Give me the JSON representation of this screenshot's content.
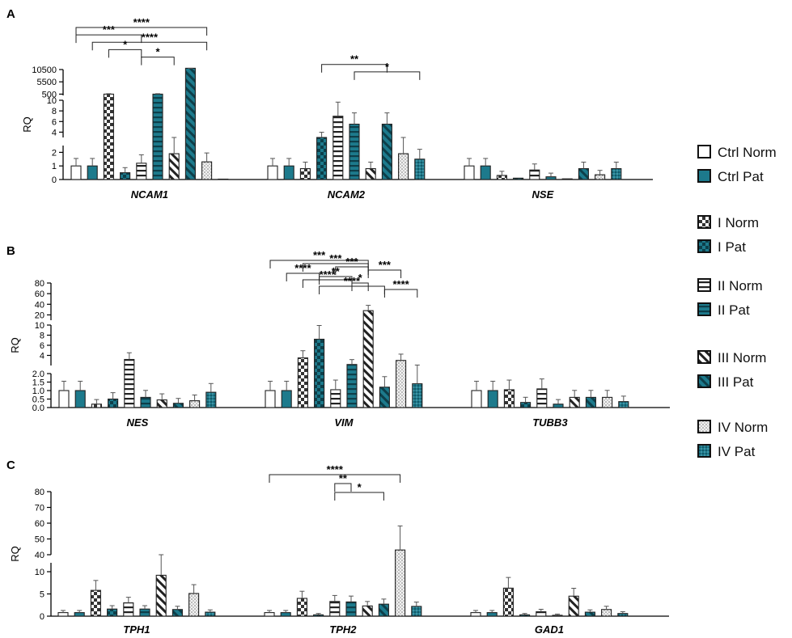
{
  "groups": [
    {
      "key": "ctrl_norm",
      "label": "Ctrl Norm",
      "pattern": "solid",
      "fill": "#ffffff"
    },
    {
      "key": "ctrl_pat",
      "label": "Ctrl Pat",
      "pattern": "solid",
      "fill": "#1d7a8c"
    },
    {
      "key": "i_norm",
      "label": "I Norm",
      "pattern": "check",
      "fill": "#ffffff"
    },
    {
      "key": "i_pat",
      "label": "I Pat",
      "pattern": "check",
      "fill": "#1d7a8c"
    },
    {
      "key": "ii_norm",
      "label": "II Norm",
      "pattern": "hstripe",
      "fill": "#ffffff"
    },
    {
      "key": "ii_pat",
      "label": "II Pat",
      "pattern": "hstripe",
      "fill": "#1d7a8c"
    },
    {
      "key": "iii_norm",
      "label": "III Norm",
      "pattern": "diag",
      "fill": "#ffffff"
    },
    {
      "key": "iii_pat",
      "label": "III Pat",
      "pattern": "diag",
      "fill": "#1d7a8c"
    },
    {
      "key": "iv_norm",
      "label": "IV Norm",
      "pattern": "dots",
      "fill": "#ffffff"
    },
    {
      "key": "iv_pat",
      "label": "IV Pat",
      "pattern": "dots",
      "fill": "#1d7a8c"
    }
  ],
  "colors": {
    "teal": "#1d7a8c",
    "outline": "#222222"
  },
  "chart_data": [
    {
      "panel": "A",
      "type": "bar",
      "ylabel": "RQ",
      "segments": [
        {
          "range": [
            0,
            2.5
          ],
          "ticks": [
            "0",
            "1",
            "2"
          ],
          "tickvals": [
            0,
            1,
            2
          ]
        },
        {
          "range": [
            3,
            10
          ],
          "ticks": [
            "4",
            "6",
            "8",
            "10"
          ],
          "tickvals": [
            4,
            6,
            8,
            10
          ]
        },
        {
          "range": [
            0,
            10500
          ],
          "ticks": [
            "500",
            "5500",
            "10500"
          ],
          "tickvals": [
            500,
            5500,
            10500
          ],
          "scale": "custom"
        }
      ],
      "categories": [
        "NCAM1",
        "NCAM2",
        "NSE"
      ],
      "values": [
        [
          1.0,
          1.0,
          500,
          0.5,
          1.2,
          500,
          1.9,
          12000,
          1.3,
          0
        ],
        [
          1.0,
          1.0,
          0.8,
          2.8,
          7.0,
          5.5,
          0.8,
          5.5,
          1.9,
          1.5
        ],
        [
          1.0,
          1.0,
          0.3,
          0.1,
          0.7,
          0.2,
          0.05,
          0.8,
          0.35,
          0.8
        ]
      ],
      "significance": [
        {
          "label": "****",
          "from": "NCAM1 Ctrl Norm",
          "to": "NCAM1 IV Norm"
        },
        {
          "label": "***",
          "from": "NCAM1 Ctrl Norm",
          "to": "NCAM1 II Norm"
        },
        {
          "label": "****",
          "from": "NCAM1 Ctrl Pat",
          "to": "NCAM1 IV Norm"
        },
        {
          "label": "*",
          "from": "NCAM1 I Norm",
          "to": "NCAM1 II Norm"
        },
        {
          "label": "*",
          "from": "NCAM1 II Norm",
          "to": "NCAM1 III Norm"
        },
        {
          "label": "**",
          "from": "NCAM2 I Pat",
          "to": "NCAM2 III Pat"
        },
        {
          "label": "*",
          "from": "NCAM2 II Pat",
          "to": "NCAM2 IV Pat"
        }
      ]
    },
    {
      "panel": "B",
      "type": "bar",
      "ylabel": "RQ",
      "segments": [
        {
          "range": [
            0,
            2.0
          ],
          "ticks": [
            "0.0",
            "0.5",
            "1.0",
            "1.5",
            "2.0"
          ],
          "tickvals": [
            0,
            0.5,
            1.0,
            1.5,
            2.0
          ]
        },
        {
          "range": [
            2,
            10
          ],
          "ticks": [
            "4",
            "6",
            "8",
            "10"
          ],
          "tickvals": [
            4,
            6,
            8,
            10
          ]
        },
        {
          "range": [
            10,
            80
          ],
          "ticks": [
            "20",
            "40",
            "60",
            "80"
          ],
          "tickvals": [
            20,
            40,
            60,
            80
          ]
        }
      ],
      "categories": [
        "NES",
        "VIM",
        "TUBB3"
      ],
      "values": [
        [
          1.0,
          1.0,
          0.2,
          0.5,
          3.2,
          0.6,
          0.45,
          0.25,
          0.4,
          0.9
        ],
        [
          1.0,
          1.0,
          3.5,
          7.2,
          1.05,
          2.2,
          28,
          1.2,
          3.0,
          1.4
        ],
        [
          1.0,
          1.0,
          1.05,
          0.3,
          1.1,
          0.2,
          0.6,
          0.6,
          0.6,
          0.35
        ]
      ],
      "significance": [
        {
          "label": "***",
          "from": "VIM Ctrl Norm",
          "to": "VIM III Norm"
        },
        {
          "label": "***",
          "from": "VIM I Norm",
          "to": "VIM III Norm"
        },
        {
          "label": "***",
          "from": "VIM II Norm",
          "to": "VIM III Norm"
        },
        {
          "label": "***",
          "from": "VIM III Norm",
          "to": "VIM IV Norm"
        },
        {
          "label": "****",
          "from": "VIM Ctrl Pat",
          "to": "VIM I Pat"
        },
        {
          "label": "**",
          "from": "VIM I Pat",
          "to": "VIM II Pat"
        },
        {
          "label": "****",
          "from": "VIM I Norm",
          "to": "VIM II Pat"
        },
        {
          "label": "*",
          "from": "VIM II Pat",
          "to": "VIM III Norm"
        },
        {
          "label": "****",
          "from": "VIM I Pat",
          "to": "VIM III Pat"
        },
        {
          "label": "****",
          "from": "VIM III Pat",
          "to": "VIM IV Pat"
        }
      ]
    },
    {
      "panel": "C",
      "type": "bar",
      "ylabel": "RQ",
      "segments": [
        {
          "range": [
            0,
            12
          ],
          "ticks": [
            "0",
            "5",
            "10"
          ],
          "tickvals": [
            0,
            5,
            10
          ]
        },
        {
          "range": [
            40,
            80
          ],
          "ticks": [
            "40",
            "50",
            "60",
            "70",
            "80"
          ],
          "tickvals": [
            40,
            50,
            60,
            70,
            80
          ]
        }
      ],
      "categories": [
        "TPH1",
        "TPH2",
        "GAD1"
      ],
      "values": [
        [
          0.8,
          0.8,
          5.8,
          1.6,
          3.0,
          1.6,
          9.2,
          1.5,
          5.1,
          0.9
        ],
        [
          0.8,
          0.8,
          4.0,
          0.3,
          3.3,
          3.2,
          2.3,
          2.7,
          43,
          2.2
        ],
        [
          0.8,
          0.8,
          6.3,
          0.3,
          1.0,
          0.2,
          4.5,
          0.9,
          1.5,
          0.6
        ]
      ],
      "significance": [
        {
          "label": "****",
          "from": "TPH2 Ctrl Norm",
          "to": "TPH2 IV Norm"
        },
        {
          "label": "**",
          "from": "TPH2 II Norm",
          "to": "TPH2 II Pat"
        },
        {
          "label": "*",
          "from": "TPH2 II Norm",
          "to": "TPH2 III Pat"
        }
      ]
    }
  ]
}
